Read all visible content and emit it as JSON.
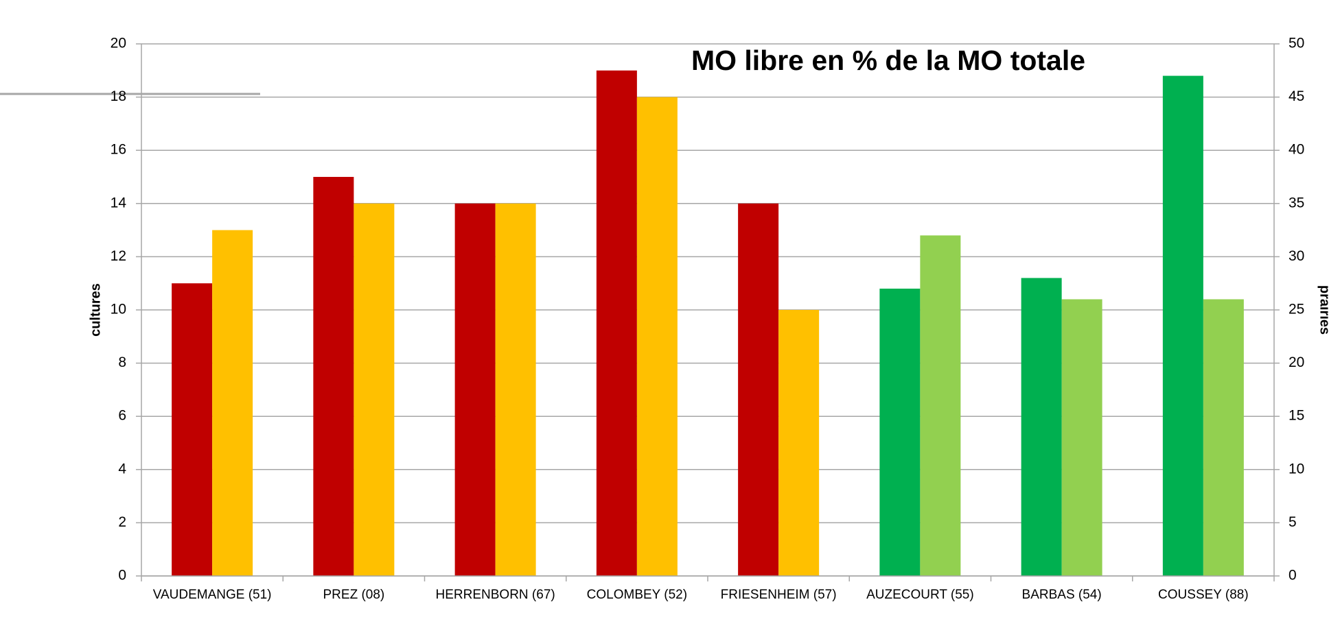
{
  "chart_data": {
    "type": "bar",
    "title": "MO libre en % de la MO totale",
    "y_label": "cultures",
    "y2_label": "prairies",
    "categories": [
      "VAUDEMANGE (51)",
      "PREZ (08)",
      "HERRENBORN (67)",
      "COLOMBEY (52)",
      "FRIESENHEIM (57)",
      "AUZECOURT (55)",
      "BARBAS (54)",
      "COUSSEY (88)"
    ],
    "series": [
      {
        "color": "#c00000",
        "axis": "y",
        "values": [
          11,
          15,
          14,
          19,
          14,
          null,
          null,
          null
        ]
      },
      {
        "color": "#ffc000",
        "axis": "y",
        "values": [
          13,
          14,
          14,
          18,
          10,
          null,
          null,
          null
        ]
      },
      {
        "color": "#00b050",
        "axis": "y2",
        "values": [
          null,
          null,
          null,
          null,
          null,
          27,
          28,
          47
        ]
      },
      {
        "color": "#92d050",
        "axis": "y2",
        "values": [
          null,
          null,
          null,
          null,
          null,
          32,
          26,
          26
        ]
      }
    ],
    "ylim": [
      0,
      20
    ],
    "yticks": [
      0,
      2,
      4,
      6,
      8,
      10,
      12,
      14,
      16,
      18,
      20
    ],
    "y2lim": [
      0,
      50
    ],
    "y2ticks": [
      0,
      5,
      10,
      15,
      20,
      25,
      30,
      35,
      40,
      45,
      50
    ],
    "grid": true
  }
}
